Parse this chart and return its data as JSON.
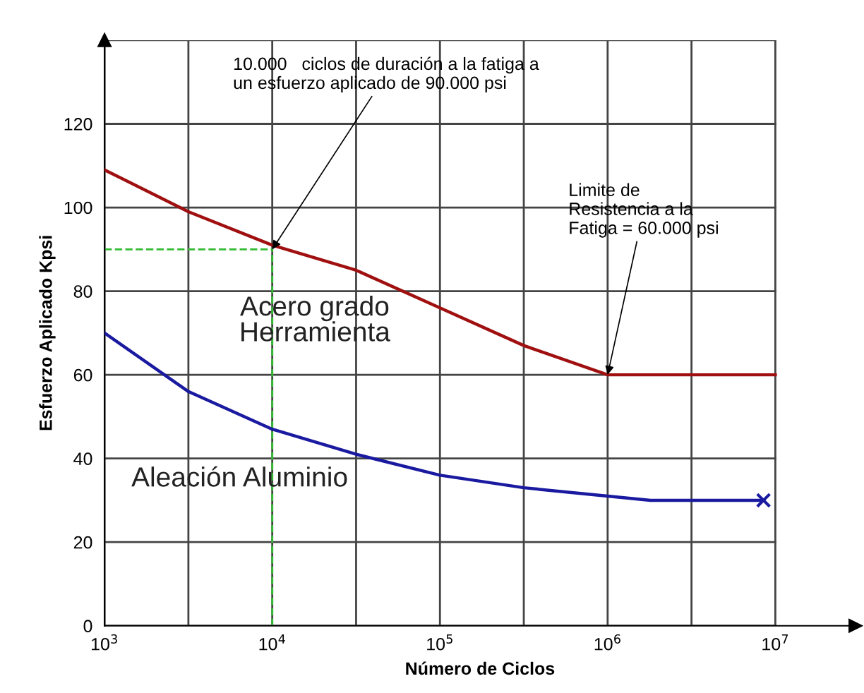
{
  "chart_data": {
    "type": "line",
    "xlabel": "Número de Ciclos",
    "ylabel": "Esfuerzo Aplicado Kpsi",
    "log": "x",
    "grid": true,
    "legend": false,
    "marker": "none",
    "line_style": "solid",
    "xlim": [
      1000,
      30000000
    ],
    "ylim": [
      0,
      140
    ],
    "xticks": [
      {
        "value": 1000,
        "label": "10$^{3}$"
      },
      {
        "value": 3162,
        "label": null
      },
      {
        "value": 10000,
        "label": "10$^{4}$"
      },
      {
        "value": 31623,
        "label": null
      },
      {
        "value": 100000,
        "label": "10$^{5}$"
      },
      {
        "value": 316228,
        "label": null
      },
      {
        "value": 1000000,
        "label": "10$^{6}$"
      },
      {
        "value": 3162278,
        "label": null
      },
      {
        "value": 10000000,
        "label": "10$^{7}$"
      }
    ],
    "yticks": [
      0,
      20,
      40,
      60,
      80,
      100,
      120,
      {
        "value": 140,
        "label": null
      }
    ],
    "series": [
      {
        "name": "Acero grado\nHerramienta",
        "color": "#a01010",
        "x": [
          1000,
          3162,
          10000,
          31623,
          100000,
          316228,
          1000000,
          10000000
        ],
        "values": [
          109,
          99,
          91,
          85,
          76,
          67,
          60,
          60
        ]
      },
      {
        "name": "Aleación Aluminio",
        "color": "#1a1aa0",
        "x": [
          1000,
          3162,
          10000,
          31623,
          100000,
          316228,
          1000000,
          1800000,
          8500000
        ],
        "values": [
          70,
          56,
          47,
          41,
          36,
          33,
          31,
          30,
          30
        ]
      },
      {
        "type": "scatter",
        "marker": "cross",
        "color": "#1a1aa0",
        "x": [
          8500000
        ],
        "values": [
          30
        ]
      }
    ],
    "ref_lines": [
      {
        "axis": "x",
        "value": 10000,
        "color": "#33bb33",
        "line_style": "dashed"
      },
      {
        "axis": "y",
        "value": 90,
        "color": "#33bb33",
        "line_style": "dashed"
      }
    ],
    "annotations": [
      {
        "text": "10.000   ciclos de duración a la fatiga a\nun esfuerzo aplicado de 90.000 psi",
        "x": 10000,
        "y": 90
      },
      {
        "text": "Limite de\nResistencia a la\nFatiga = 60.000 psi",
        "x": 1000000,
        "y": 60
      }
    ]
  }
}
